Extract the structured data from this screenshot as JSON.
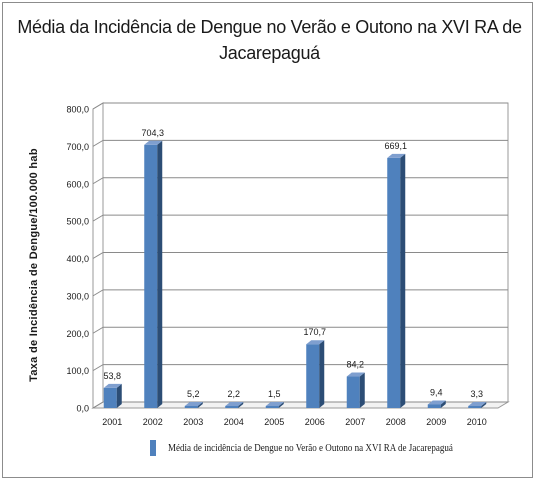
{
  "chart_data": {
    "type": "bar",
    "title": "Média da Incidência de Dengue no Verão e Outono na XVI RA de Jacarepaguá",
    "ylabel": "Taxa de Incidência de Dengue/100.000 hab",
    "xlabel": "",
    "categories": [
      "2001",
      "2002",
      "2003",
      "2004",
      "2005",
      "2006",
      "2007",
      "2008",
      "2009",
      "2010"
    ],
    "series": [
      {
        "name": "Média de incidência de Dengue no Verão e Outono na XVI RA de Jacarepaguá",
        "values": [
          53.8,
          704.3,
          5.2,
          2.2,
          1.5,
          170.7,
          84.2,
          669.1,
          9.4,
          3.3
        ],
        "labels": [
          "53,8",
          "704,3",
          "5,2",
          "2,2",
          "1,5",
          "170,7",
          "84,2",
          "669,1",
          "9,4",
          "3,3"
        ]
      }
    ],
    "ylim": [
      0,
      800
    ],
    "yticks": [
      "0,0",
      "100,0",
      "200,0",
      "300,0",
      "400,0",
      "500,0",
      "600,0",
      "700,0",
      "800,0"
    ],
    "grid": true,
    "legend": "bottom",
    "colors": {
      "bar_front": "#4f81bd",
      "bar_side": "#2c4d75",
      "bar_top": "#7f9fcf"
    }
  }
}
